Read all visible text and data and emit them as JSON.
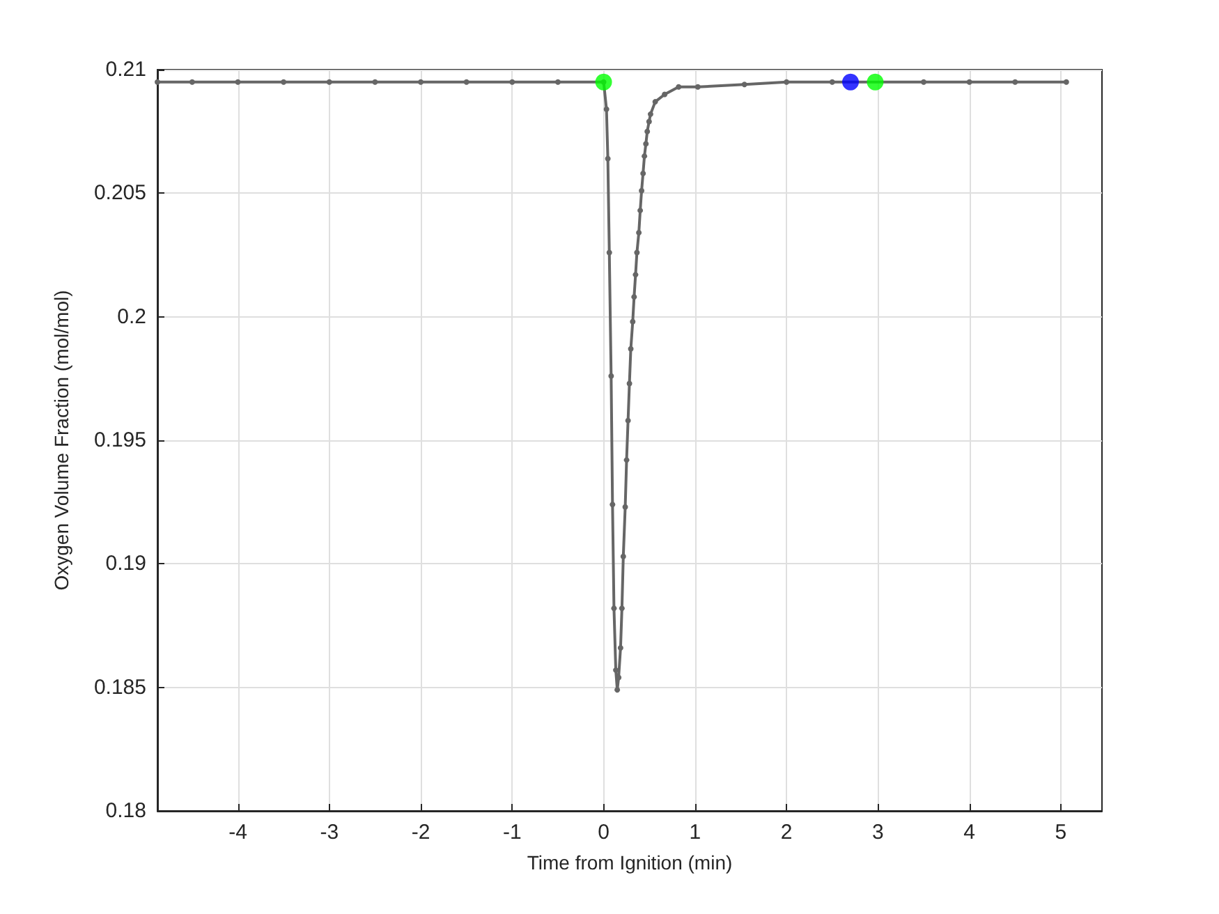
{
  "chart_data": {
    "type": "line",
    "xlabel": "Time from Ignition (min)",
    "ylabel": "Oxygen Volume Fraction (mol/mol)",
    "xlim": [
      -4.88,
      5.45
    ],
    "xticks": [
      -4,
      -3,
      -2,
      -1,
      0,
      1,
      2,
      3,
      4,
      5
    ],
    "ylim": [
      0.18,
      0.21
    ],
    "yticks": [
      0.18,
      0.185,
      0.19,
      0.195,
      0.2,
      0.205,
      0.21
    ],
    "grid": true,
    "marker": "circle",
    "line_style": "solid",
    "series": [
      {
        "color": "#666666",
        "x": [
          -4.88,
          -4.5,
          -4,
          -3.5,
          -3,
          -2.5,
          -2,
          -1.5,
          -1,
          -0.5,
          0,
          0.031,
          0.046,
          0.062,
          0.082,
          0.097,
          0.113,
          0.133,
          0.149,
          0.164,
          0.185,
          0.2,
          0.215,
          0.236,
          0.251,
          0.267,
          0.282,
          0.297,
          0.318,
          0.333,
          0.349,
          0.364,
          0.385,
          0.4,
          0.415,
          0.431,
          0.446,
          0.462,
          0.477,
          0.497,
          0.513,
          0.564,
          0.667,
          0.82,
          1.03,
          1.54,
          2,
          2.5,
          3.5,
          4,
          4.5,
          5.06
        ],
        "values": [
          0.2095,
          0.2095,
          0.2095,
          0.2095,
          0.2095,
          0.2095,
          0.2095,
          0.2095,
          0.2095,
          0.2095,
          0.2095,
          0.2084,
          0.2064,
          0.2026,
          0.1976,
          0.1924,
          0.1882,
          0.1857,
          0.1849,
          0.1854,
          0.1866,
          0.1882,
          0.1903,
          0.1923,
          0.1942,
          0.1958,
          0.1973,
          0.1987,
          0.1998,
          0.2008,
          0.2017,
          0.2026,
          0.2034,
          0.2043,
          0.2051,
          0.2058,
          0.2065,
          0.207,
          0.2075,
          0.2079,
          0.2082,
          0.2087,
          0.209,
          0.2093,
          0.2093,
          0.2094,
          0.2095,
          0.2095,
          0.2095,
          0.2095,
          0.2095,
          0.2095
        ]
      },
      {
        "type": "scatter",
        "color": "#0000ff",
        "x": [
          2.7
        ],
        "values": [
          0.2095
        ]
      },
      {
        "type": "scatter",
        "color": "#00ff00",
        "x": [
          0,
          2.97
        ],
        "values": [
          0.2095,
          0.2095
        ]
      }
    ]
  }
}
